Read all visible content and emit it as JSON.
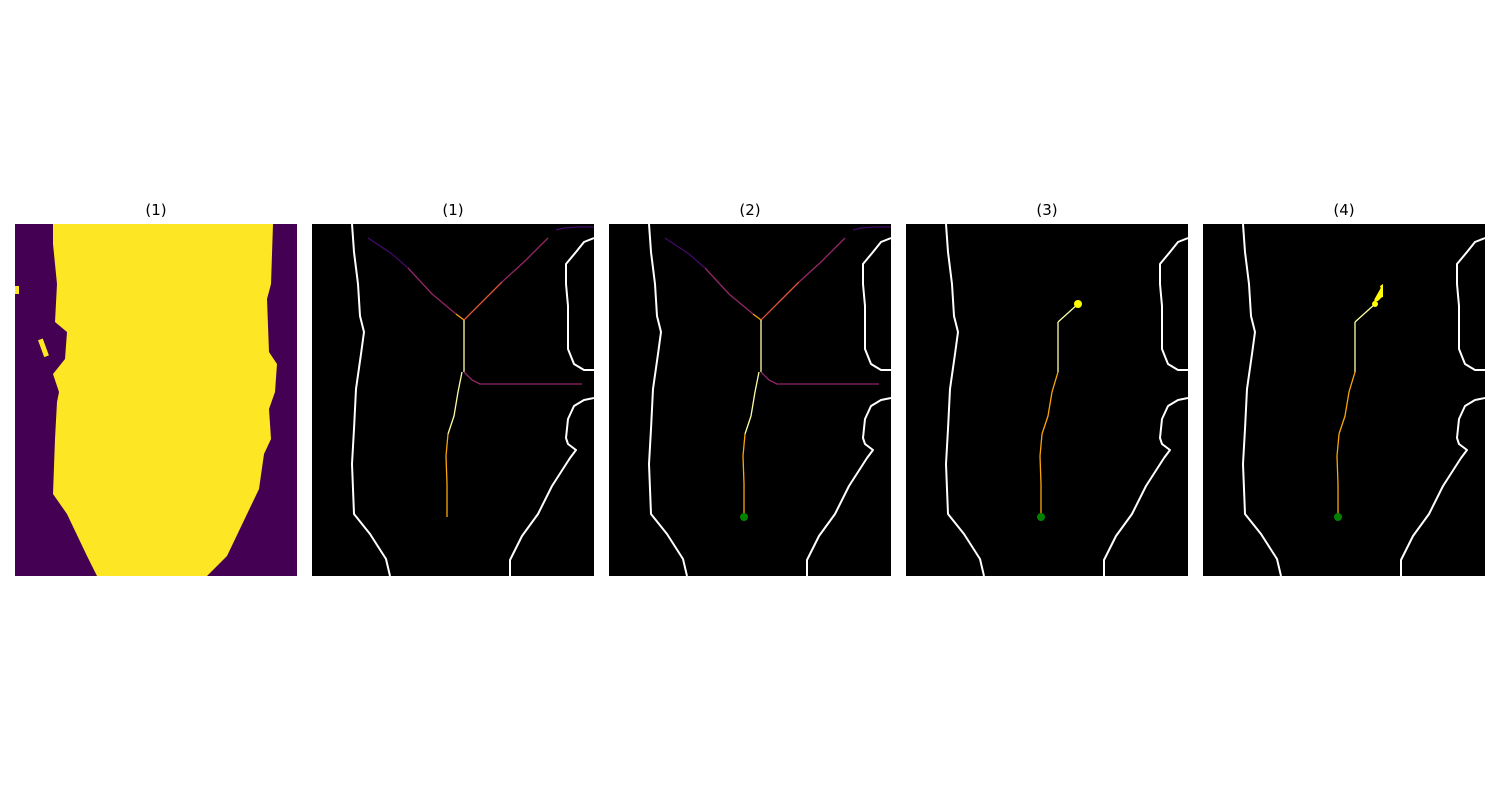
{
  "panels": [
    {
      "title": "(1)",
      "kind": "mask"
    },
    {
      "title": "(1)",
      "kind": "skeleton-full"
    },
    {
      "title": "(2)",
      "kind": "skeleton-with-start"
    },
    {
      "title": "(3)",
      "kind": "path-to-target"
    },
    {
      "title": "(4)",
      "kind": "path-with-arrow"
    }
  ],
  "colors": {
    "mask_background": "#440154",
    "mask_foreground": "#fde725",
    "edge_background": "#000000",
    "edge_line": "#ffffff",
    "start_marker": "#008000",
    "target_marker": "#ffff00",
    "skeleton_gradient": [
      "#fcffa4",
      "#fca50a",
      "#dd513a",
      "#932667",
      "#420a68"
    ]
  }
}
